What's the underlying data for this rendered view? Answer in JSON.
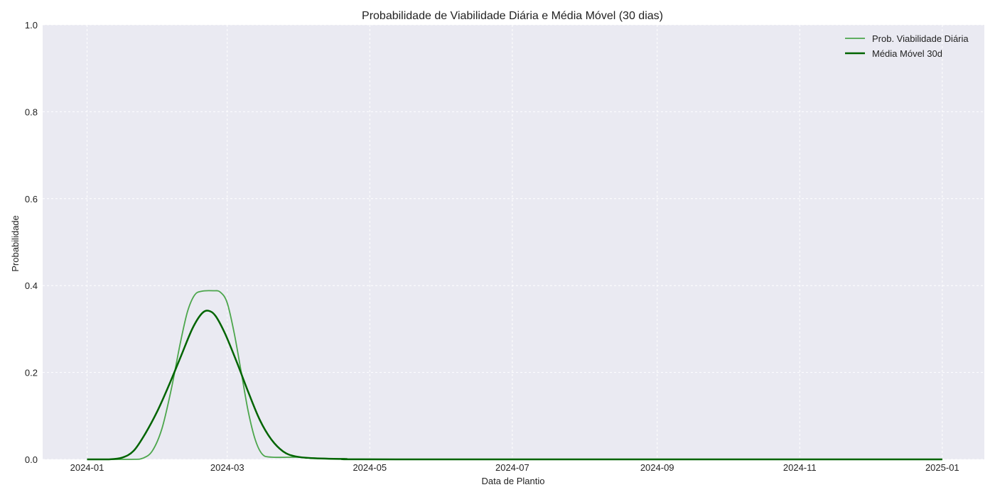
{
  "chart_data": {
    "type": "line",
    "title": "Probabilidade de Viabilidade Diária e Média Móvel (30 dias)",
    "xlabel": "Data de Plantio",
    "ylabel": "Probabilidade",
    "xlim": [
      "2023-12-13",
      "2025-01-19"
    ],
    "ylim": [
      0,
      1.0
    ],
    "x_ticks": [
      "2024-01",
      "2024-03",
      "2024-05",
      "2024-07",
      "2024-09",
      "2024-11",
      "2025-01"
    ],
    "y_ticks": [
      "0.0",
      "0.2",
      "0.4",
      "0.6",
      "0.8",
      "1.0"
    ],
    "grid": true,
    "legend_position": "top-right",
    "colors": {
      "background": "#eaeaf2",
      "grid": "#ffffff",
      "daily": "#4ca64c",
      "rolling": "#006400"
    },
    "series": [
      {
        "name": "Prob. Viabilidade Diária",
        "color": "#4ca64c",
        "points": [
          {
            "x": "2024-01-01",
            "y": 0.0
          },
          {
            "x": "2024-01-20",
            "y": 0.0
          },
          {
            "x": "2024-01-25",
            "y": 0.003
          },
          {
            "x": "2024-01-29",
            "y": 0.02
          },
          {
            "x": "2024-02-02",
            "y": 0.07
          },
          {
            "x": "2024-02-06",
            "y": 0.16
          },
          {
            "x": "2024-02-10",
            "y": 0.27
          },
          {
            "x": "2024-02-13",
            "y": 0.34
          },
          {
            "x": "2024-02-16",
            "y": 0.378
          },
          {
            "x": "2024-02-19",
            "y": 0.387
          },
          {
            "x": "2024-02-24",
            "y": 0.388
          },
          {
            "x": "2024-02-27",
            "y": 0.385
          },
          {
            "x": "2024-03-01",
            "y": 0.36
          },
          {
            "x": "2024-03-04",
            "y": 0.29
          },
          {
            "x": "2024-03-07",
            "y": 0.2
          },
          {
            "x": "2024-03-10",
            "y": 0.11
          },
          {
            "x": "2024-03-13",
            "y": 0.045
          },
          {
            "x": "2024-03-16",
            "y": 0.012
          },
          {
            "x": "2024-03-20",
            "y": 0.005
          },
          {
            "x": "2024-03-31",
            "y": 0.005
          },
          {
            "x": "2024-04-06",
            "y": 0.003
          },
          {
            "x": "2024-04-20",
            "y": 0.001
          },
          {
            "x": "2024-05-15",
            "y": 0.0
          },
          {
            "x": "2025-01-01",
            "y": 0.0
          }
        ]
      },
      {
        "name": "Média Móvel 30d",
        "color": "#006400",
        "points": [
          {
            "x": "2024-01-01",
            "y": 0.0
          },
          {
            "x": "2024-01-10",
            "y": 0.0
          },
          {
            "x": "2024-01-16",
            "y": 0.004
          },
          {
            "x": "2024-01-21",
            "y": 0.02
          },
          {
            "x": "2024-01-26",
            "y": 0.06
          },
          {
            "x": "2024-01-31",
            "y": 0.11
          },
          {
            "x": "2024-02-05",
            "y": 0.17
          },
          {
            "x": "2024-02-10",
            "y": 0.235
          },
          {
            "x": "2024-02-15",
            "y": 0.3
          },
          {
            "x": "2024-02-19",
            "y": 0.335
          },
          {
            "x": "2024-02-22",
            "y": 0.342
          },
          {
            "x": "2024-02-25",
            "y": 0.33
          },
          {
            "x": "2024-02-29",
            "y": 0.29
          },
          {
            "x": "2024-03-05",
            "y": 0.225
          },
          {
            "x": "2024-03-10",
            "y": 0.155
          },
          {
            "x": "2024-03-15",
            "y": 0.09
          },
          {
            "x": "2024-03-20",
            "y": 0.045
          },
          {
            "x": "2024-03-25",
            "y": 0.018
          },
          {
            "x": "2024-03-30",
            "y": 0.007
          },
          {
            "x": "2024-04-06",
            "y": 0.003
          },
          {
            "x": "2024-04-20",
            "y": 0.001
          },
          {
            "x": "2024-05-15",
            "y": 0.0
          },
          {
            "x": "2025-01-01",
            "y": 0.0
          }
        ]
      }
    ]
  }
}
